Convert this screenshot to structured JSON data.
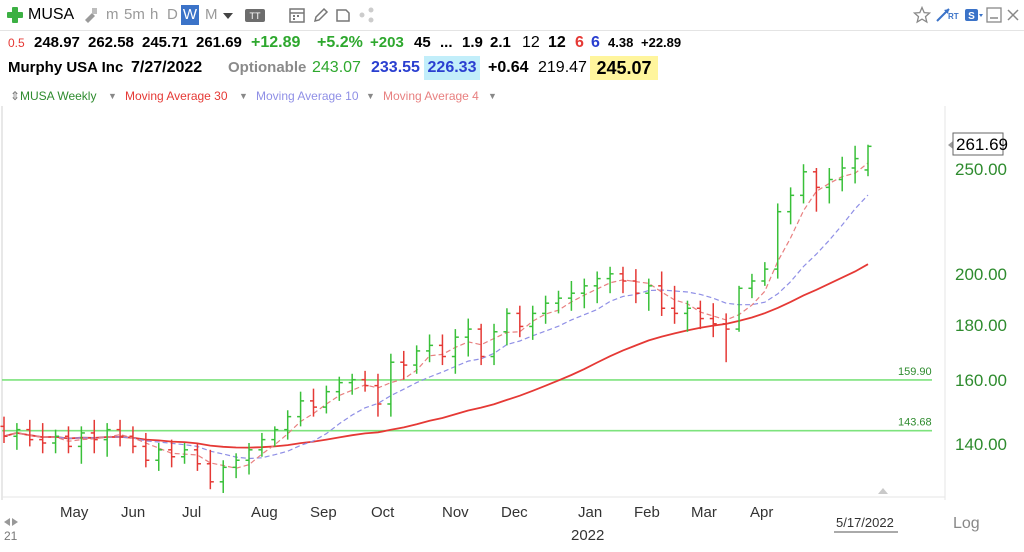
{
  "toolbar": {
    "symbol": "MUSA",
    "intervals": [
      "m",
      "5m",
      "h",
      "D",
      "W",
      "M"
    ],
    "active_interval": "W",
    "colors": {
      "active_bg": "#3b73c8",
      "add_green": "#3cb043"
    }
  },
  "quote_row": {
    "prefix": "0.5",
    "open": "248.97",
    "high": "262.58",
    "low": "245.71",
    "close": "261.69",
    "change": "+12.89",
    "change_pct": "+5.2%",
    "v1": "+203",
    "v2": "45",
    "ellipsis": "...",
    "v3": "1.9",
    "v4": "2.1",
    "v5": "12",
    "v6": "12",
    "v7": "6",
    "v8": "6",
    "v9": "4.38",
    "v10": "+22.89"
  },
  "info_row": {
    "name": "Murphy USA Inc",
    "date": "7/27/2022",
    "optionable": "Optionable",
    "p1": "243.07",
    "p2": "233.55",
    "p3": "226.33",
    "p4": "+0.64",
    "p5": "219.47",
    "p6": "245.07"
  },
  "legend": {
    "series_weekly": "MUSA Weekly",
    "ma30": "Moving Average 30",
    "ma10": "Moving Average 10",
    "ma4": "Moving Average 4"
  },
  "colors": {
    "up": "#39c039",
    "down": "#e53935",
    "neutral": "#000000",
    "ma30": "#e53935",
    "ma10": "#8f8fe6",
    "ma4": "#e88080",
    "hline": "#7de37d",
    "price_axis": "#2e8b2e"
  },
  "chart_data": {
    "type": "bar",
    "title": "MUSA Weekly",
    "scale": "log",
    "ylim": [
      125,
      275
    ],
    "price_ticks": [
      "250.00",
      "200.00",
      "180.00",
      "160.00",
      "140.00"
    ],
    "month_labels": [
      "May",
      "Jun",
      "Jul",
      "Aug",
      "Sep",
      "Oct",
      "Nov",
      "Dec",
      "Jan",
      "Feb",
      "Mar",
      "Apr"
    ],
    "year_label": "2022",
    "date_label": "5/17/2022",
    "last_price": "261.69",
    "horizontal_lines": [
      {
        "value": 159.9,
        "label": "159.90"
      },
      {
        "value": 143.68,
        "label": "143.68"
      }
    ],
    "ohlc": [
      [
        145,
        148,
        140,
        142
      ],
      [
        142,
        146,
        138,
        144
      ],
      [
        144,
        147,
        139,
        141
      ],
      [
        141,
        146,
        137,
        140
      ],
      [
        140,
        144,
        137,
        142
      ],
      [
        142,
        145,
        137,
        139
      ],
      [
        139,
        145,
        134,
        143
      ],
      [
        143,
        147,
        137,
        141
      ],
      [
        141,
        146,
        136,
        144
      ],
      [
        144,
        147,
        139,
        142
      ],
      [
        142,
        145,
        137,
        139
      ],
      [
        139,
        143,
        133,
        135
      ],
      [
        135,
        140,
        132,
        138
      ],
      [
        138,
        141,
        133,
        136
      ],
      [
        136,
        140,
        134,
        138
      ],
      [
        138,
        140,
        132,
        134
      ],
      [
        134,
        138,
        127,
        129
      ],
      [
        129,
        135,
        126,
        133
      ],
      [
        133,
        137,
        130,
        135
      ],
      [
        135,
        140,
        131,
        138
      ],
      [
        138,
        143,
        136,
        141
      ],
      [
        141,
        145,
        139,
        144
      ],
      [
        144,
        150,
        141,
        148
      ],
      [
        148,
        156,
        145,
        153
      ],
      [
        153,
        157,
        148,
        151
      ],
      [
        151,
        158,
        149,
        156
      ],
      [
        156,
        161,
        153,
        159
      ],
      [
        159,
        162,
        155,
        160
      ],
      [
        160,
        163,
        156,
        158
      ],
      [
        158,
        162,
        148,
        152
      ],
      [
        152,
        169,
        148,
        166
      ],
      [
        166,
        170,
        160,
        165
      ],
      [
        165,
        172,
        162,
        170
      ],
      [
        170,
        176,
        166,
        172
      ],
      [
        172,
        176,
        165,
        168
      ],
      [
        168,
        178,
        162,
        175
      ],
      [
        175,
        182,
        168,
        178
      ],
      [
        178,
        180,
        165,
        168
      ],
      [
        168,
        180,
        165,
        177
      ],
      [
        177,
        186,
        172,
        184
      ],
      [
        184,
        187,
        175,
        179
      ],
      [
        179,
        187,
        174,
        184
      ],
      [
        184,
        191,
        180,
        188
      ],
      [
        188,
        193,
        184,
        190
      ],
      [
        190,
        197,
        185,
        192
      ],
      [
        192,
        198,
        186,
        195
      ],
      [
        195,
        201,
        188,
        198
      ],
      [
        198,
        203,
        192,
        200
      ],
      [
        200,
        203,
        192,
        197
      ],
      [
        197,
        202,
        188,
        192
      ],
      [
        192,
        198,
        185,
        195
      ],
      [
        195,
        201,
        183,
        186
      ],
      [
        186,
        195,
        180,
        184
      ],
      [
        184,
        189,
        177,
        186
      ],
      [
        186,
        189,
        178,
        182
      ],
      [
        182,
        188,
        175,
        180
      ],
      [
        180,
        184,
        166,
        178
      ],
      [
        178,
        195,
        177,
        194
      ],
      [
        194,
        200,
        190,
        197
      ],
      [
        197,
        205,
        195,
        202
      ],
      [
        202,
        232,
        198,
        228
      ],
      [
        228,
        240,
        222,
        236
      ],
      [
        236,
        252,
        232,
        248
      ],
      [
        248,
        250,
        228,
        240
      ],
      [
        240,
        250,
        232,
        244
      ],
      [
        244,
        256,
        238,
        250
      ],
      [
        250,
        262,
        242,
        255
      ],
      [
        248.97,
        262.58,
        245.71,
        261.69
      ]
    ]
  }
}
